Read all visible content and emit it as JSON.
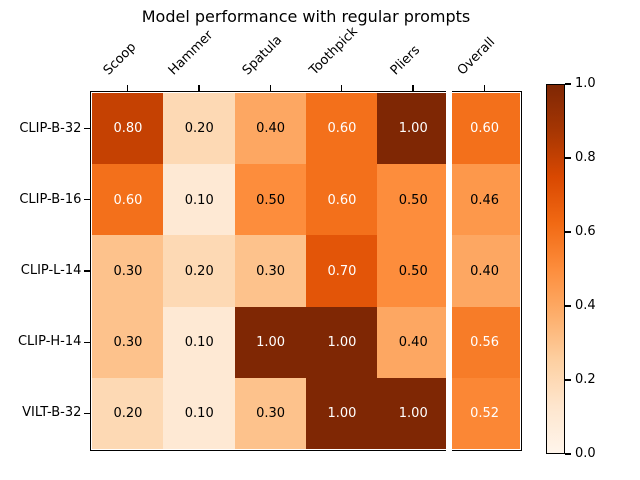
{
  "chart_data": {
    "type": "heatmap",
    "title": "Model performance with regular prompts",
    "columns": [
      "Scoop",
      "Hammer",
      "Spatula",
      "Toothpick",
      "Pliers",
      "Overall"
    ],
    "rows": [
      "CLIP-B-32",
      "CLIP-B-16",
      "CLIP-L-14",
      "CLIP-H-14",
      "VILT-B-32"
    ],
    "values": [
      [
        0.8,
        0.2,
        0.4,
        0.6,
        1.0,
        0.6
      ],
      [
        0.6,
        0.1,
        0.5,
        0.6,
        0.5,
        0.46
      ],
      [
        0.3,
        0.2,
        0.3,
        0.7,
        0.5,
        0.4
      ],
      [
        0.3,
        0.1,
        1.0,
        1.0,
        0.4,
        0.56
      ],
      [
        0.2,
        0.1,
        0.3,
        1.0,
        1.0,
        0.52
      ]
    ],
    "annotation_decimals": 2,
    "annotation_light_text_threshold": 0.5,
    "separator_after_column_index": 4,
    "colormap": "Oranges",
    "vmin": 0.0,
    "vmax": 1.0,
    "colorbar": {
      "tick_values": [
        0.0,
        0.2,
        0.4,
        0.6,
        0.8,
        1.0
      ],
      "tick_decimals": 1,
      "position": "right"
    }
  },
  "colors": {
    "background": "#ffffff",
    "colormap_anchors": [
      "#fff5eb",
      "#fee6ce",
      "#fdd0a2",
      "#fdae6b",
      "#fd8d3c",
      "#f16913",
      "#d94801",
      "#a63603",
      "#7f2704"
    ],
    "border": "#000000",
    "separator": "#ffffff",
    "annotation_dark": "#000000",
    "annotation_light": "#ffffff"
  }
}
